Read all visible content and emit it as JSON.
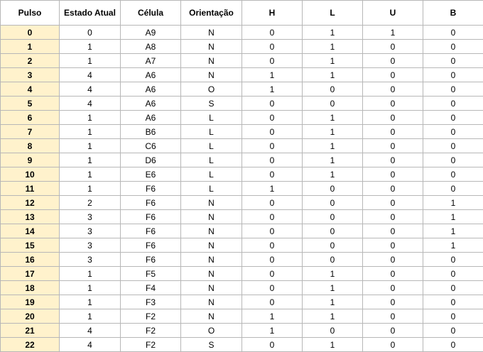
{
  "columns": [
    "Pulso",
    "Estado Atual",
    "Célula",
    "Orientação",
    "H",
    "L",
    "U",
    "B"
  ],
  "rows": [
    [
      "0",
      "0",
      "A9",
      "N",
      "0",
      "1",
      "1",
      "0"
    ],
    [
      "1",
      "1",
      "A8",
      "N",
      "0",
      "1",
      "0",
      "0"
    ],
    [
      "2",
      "1",
      "A7",
      "N",
      "0",
      "1",
      "0",
      "0"
    ],
    [
      "3",
      "4",
      "A6",
      "N",
      "1",
      "1",
      "0",
      "0"
    ],
    [
      "4",
      "4",
      "A6",
      "O",
      "1",
      "0",
      "0",
      "0"
    ],
    [
      "5",
      "4",
      "A6",
      "S",
      "0",
      "0",
      "0",
      "0"
    ],
    [
      "6",
      "1",
      "A6",
      "L",
      "0",
      "1",
      "0",
      "0"
    ],
    [
      "7",
      "1",
      "B6",
      "L",
      "0",
      "1",
      "0",
      "0"
    ],
    [
      "8",
      "1",
      "C6",
      "L",
      "0",
      "1",
      "0",
      "0"
    ],
    [
      "9",
      "1",
      "D6",
      "L",
      "0",
      "1",
      "0",
      "0"
    ],
    [
      "10",
      "1",
      "E6",
      "L",
      "0",
      "1",
      "0",
      "0"
    ],
    [
      "11",
      "1",
      "F6",
      "L",
      "1",
      "0",
      "0",
      "0"
    ],
    [
      "12",
      "2",
      "F6",
      "N",
      "0",
      "0",
      "0",
      "1"
    ],
    [
      "13",
      "3",
      "F6",
      "N",
      "0",
      "0",
      "0",
      "1"
    ],
    [
      "14",
      "3",
      "F6",
      "N",
      "0",
      "0",
      "0",
      "1"
    ],
    [
      "15",
      "3",
      "F6",
      "N",
      "0",
      "0",
      "0",
      "1"
    ],
    [
      "16",
      "3",
      "F6",
      "N",
      "0",
      "0",
      "0",
      "0"
    ],
    [
      "17",
      "1",
      "F5",
      "N",
      "0",
      "1",
      "0",
      "0"
    ],
    [
      "18",
      "1",
      "F4",
      "N",
      "0",
      "1",
      "0",
      "0"
    ],
    [
      "19",
      "1",
      "F3",
      "N",
      "0",
      "1",
      "0",
      "0"
    ],
    [
      "20",
      "1",
      "F2",
      "N",
      "1",
      "1",
      "0",
      "0"
    ],
    [
      "21",
      "4",
      "F2",
      "O",
      "1",
      "0",
      "0",
      "0"
    ],
    [
      "22",
      "4",
      "F2",
      "S",
      "0",
      "1",
      "0",
      "0"
    ]
  ],
  "colors": {
    "pulse_column_background": "#fff2cc",
    "grid_line": "#b7b7b7"
  }
}
